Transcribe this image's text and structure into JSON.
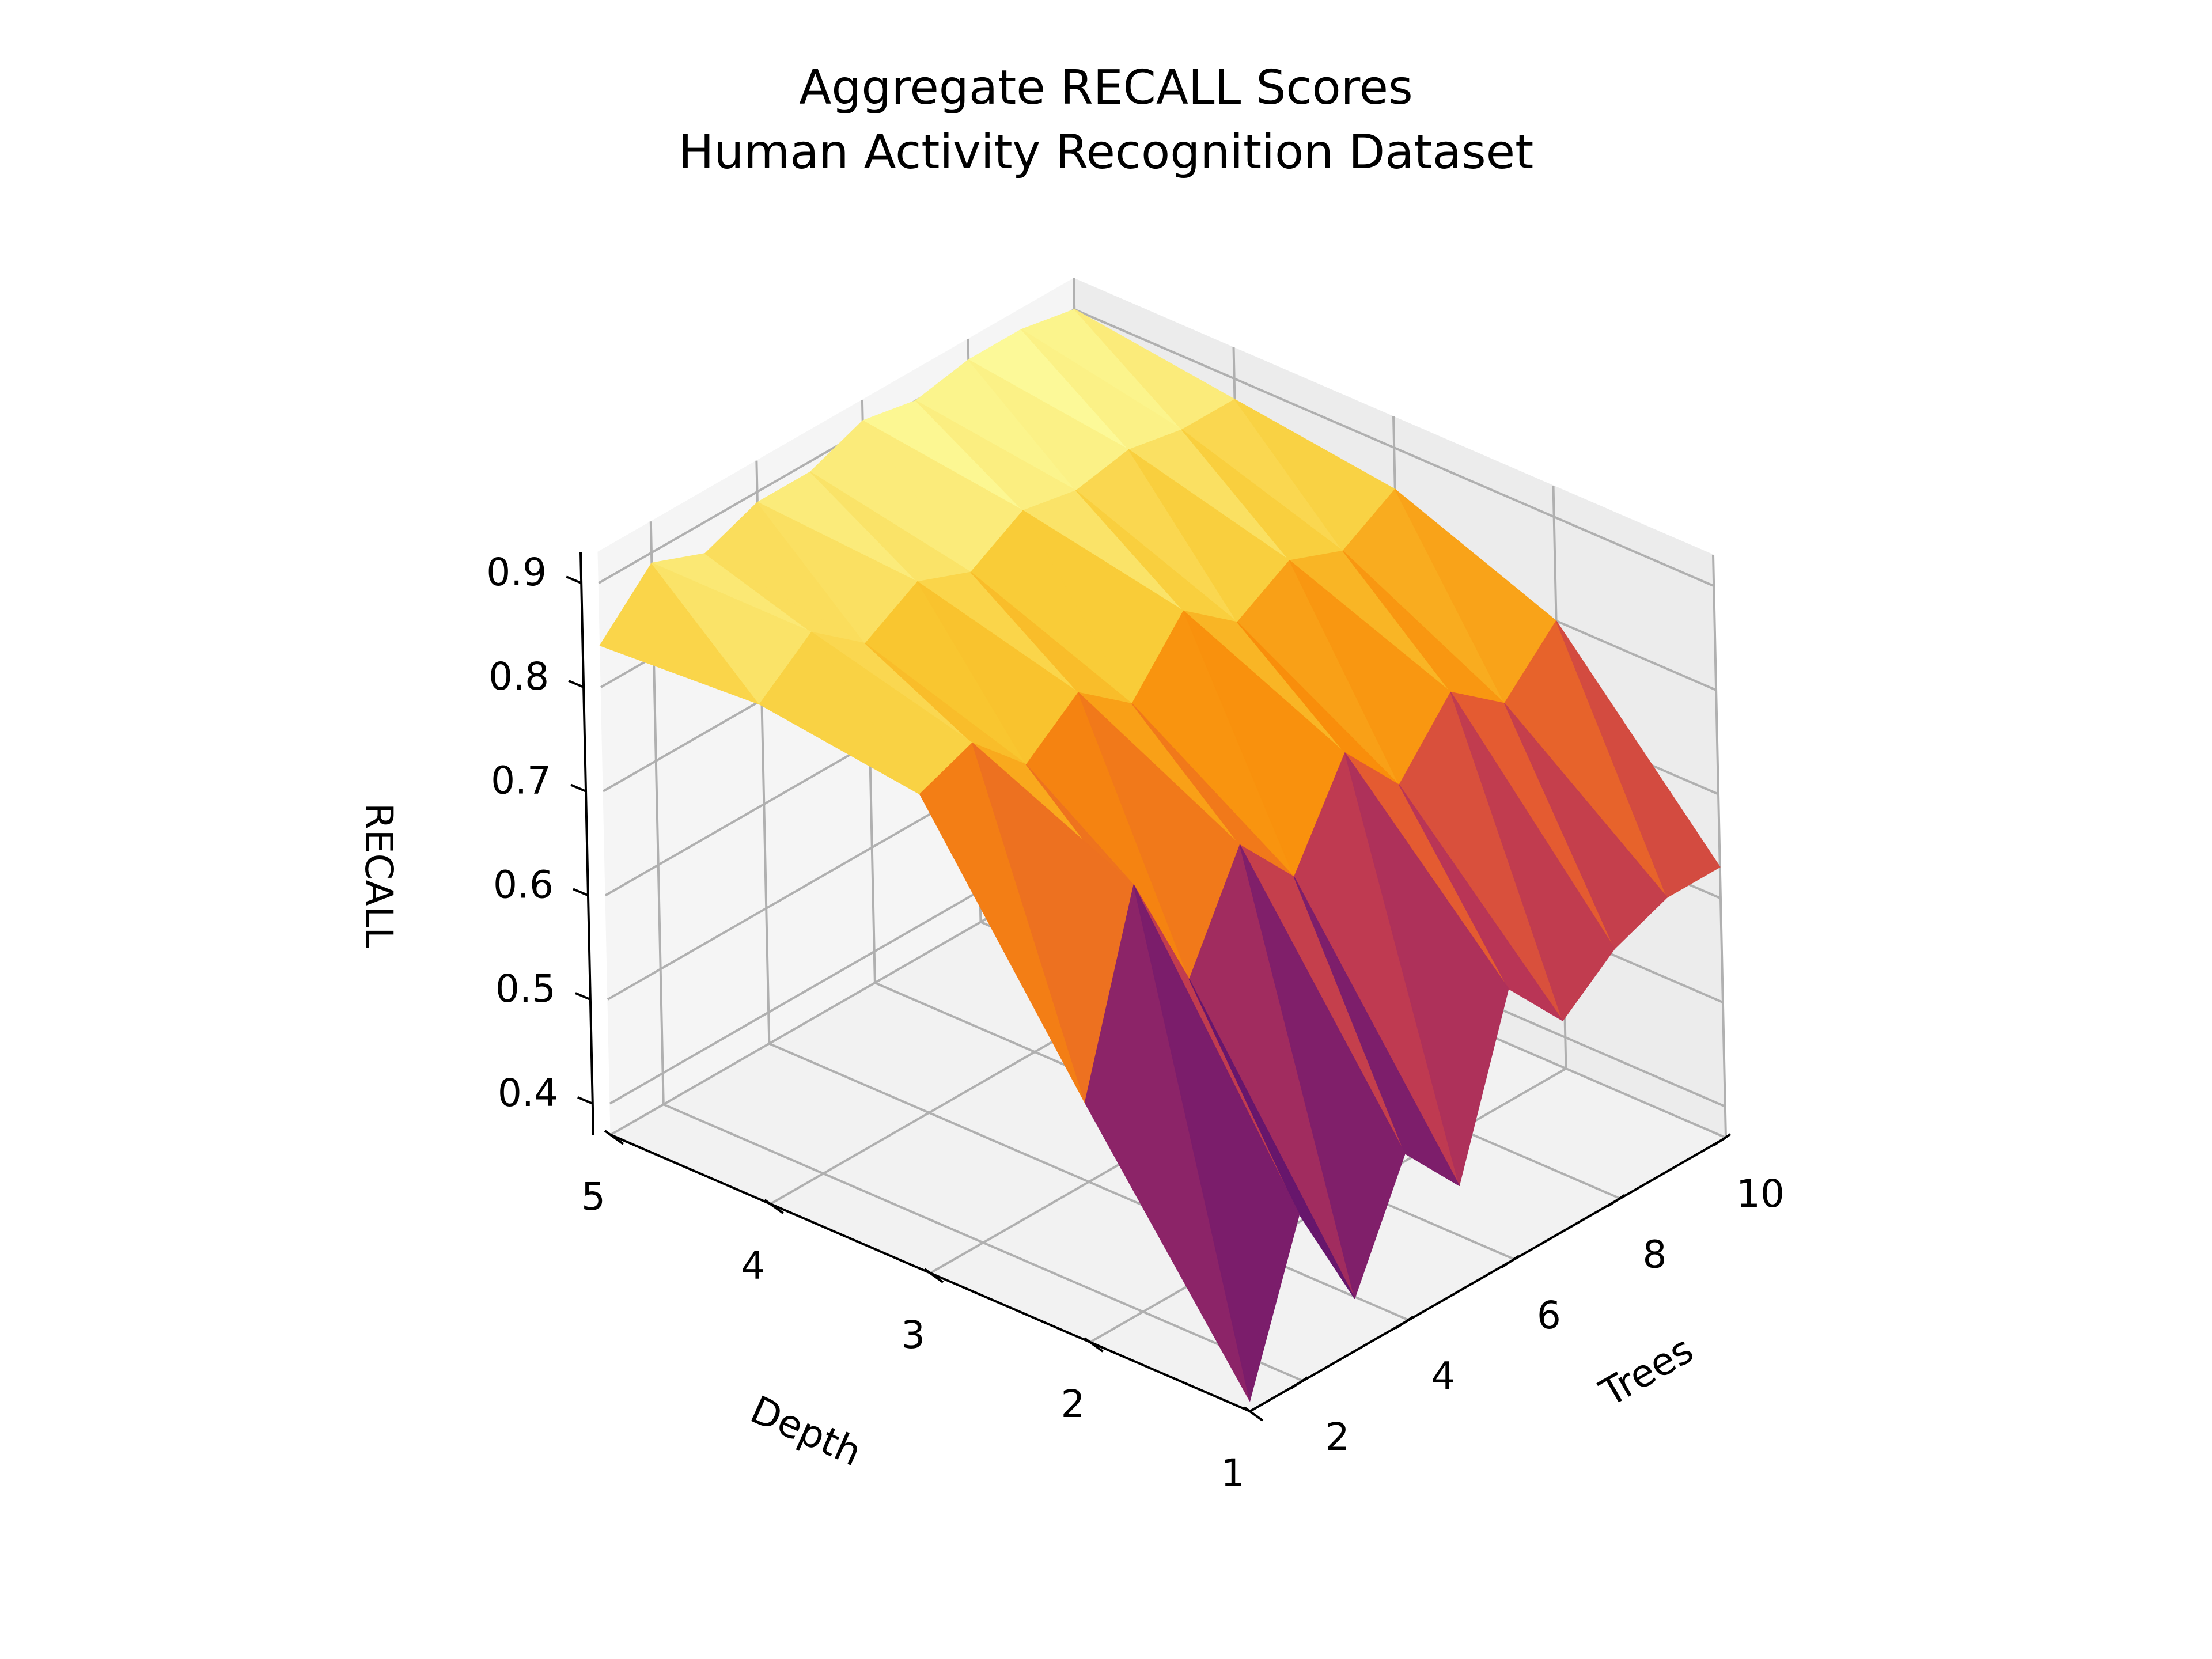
{
  "chart_data": {
    "type": "surface3d",
    "title": "Aggregate RECALL Scores",
    "subtitle": "Human Activity Recognition Dataset",
    "xlabel": "Depth",
    "ylabel": "Trees",
    "zlabel": "RECALL",
    "depth_ticks": [
      "1",
      "2",
      "3",
      "4",
      "5"
    ],
    "trees_ticks": [
      "2",
      "4",
      "6",
      "8",
      "10"
    ],
    "recall_ticks": [
      "0.4",
      "0.5",
      "0.6",
      "0.7",
      "0.8",
      "0.9"
    ],
    "depth_values": [
      1,
      2,
      3,
      4,
      5
    ],
    "trees_values": [
      1,
      2,
      3,
      4,
      5,
      6,
      7,
      8,
      9,
      10
    ],
    "zlim": [
      0.37,
      0.93
    ],
    "colormap": "inferno",
    "grid": true,
    "recall": [
      [
        0.38,
        0.53,
        0.42,
        0.53,
        0.47,
        0.63,
        0.57,
        0.61,
        0.63,
        0.63
      ],
      [
        0.6,
        0.78,
        0.66,
        0.76,
        0.7,
        0.79,
        0.73,
        0.79,
        0.75,
        0.8
      ],
      [
        0.83,
        0.85,
        0.8,
        0.84,
        0.8,
        0.86,
        0.82,
        0.85,
        0.83,
        0.86
      ],
      [
        0.85,
        0.89,
        0.85,
        0.88,
        0.86,
        0.89,
        0.88,
        0.89,
        0.88,
        0.88
      ],
      [
        0.84,
        0.89,
        0.87,
        0.89,
        0.89,
        0.91,
        0.9,
        0.91,
        0.91,
        0.9
      ]
    ]
  }
}
